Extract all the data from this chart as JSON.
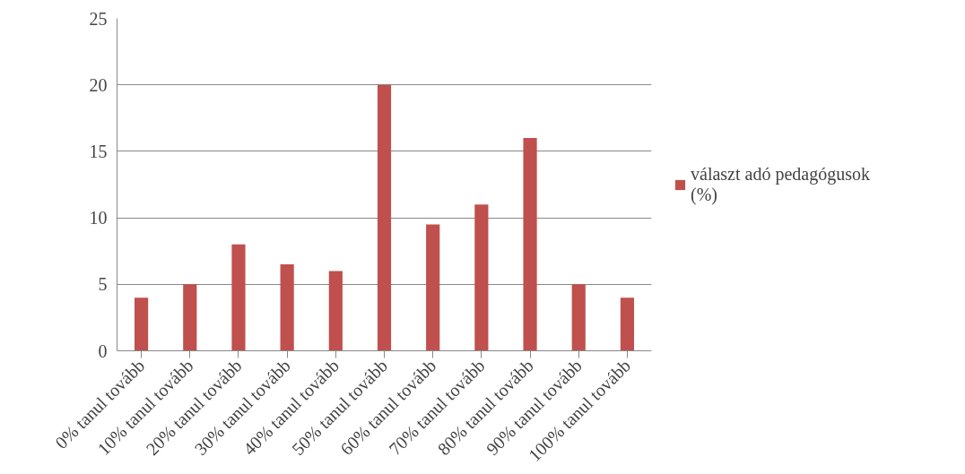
{
  "chart_data": {
    "type": "bar",
    "categories": [
      "0% tanul tovább",
      "10% tanul tovább",
      "20% tanul tovább",
      "30% tanul tovább",
      "40% tanul tovább",
      "50% tanul tovább",
      "60% tanul tovább",
      "70% tanul tovább",
      "80% tanul tovább",
      "90% tanul tovább",
      "100% tanul tovább"
    ],
    "series": [
      {
        "name": "választ adó pedagógusok (%)",
        "color": "#c0504d",
        "values": [
          4,
          5,
          8,
          6.5,
          6,
          20,
          9.5,
          11,
          16,
          5,
          4
        ]
      }
    ],
    "ylim": [
      0,
      25
    ],
    "yticks": [
      0,
      5,
      10,
      15,
      20,
      25
    ],
    "grid": "y",
    "legend": "right"
  }
}
